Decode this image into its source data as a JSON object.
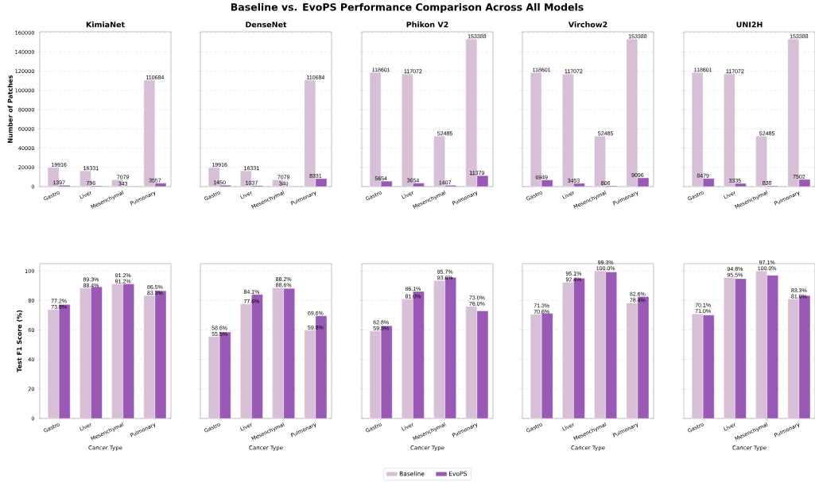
{
  "chart_data": [
    {
      "type": "bar",
      "title": "KimiaNet",
      "ylabel": "Number of Patches",
      "annotations": [
        "Baseline vs. EvoPS Performance Comparison Across All Models"
      ],
      "categories": [
        "Gastro",
        "Liver",
        "Mesenchymal",
        "Pulmonary"
      ],
      "ylim": [
        0,
        161000
      ],
      "yticks": [
        0,
        20000,
        40000,
        60000,
        80000,
        100000,
        120000,
        140000,
        160000
      ],
      "grid": "y",
      "data_labels": true,
      "series": [
        {
          "color": "#d8bfd8",
          "values": [
            19916,
            16331,
            7079,
            110684
          ]
        },
        {
          "color": "#9b59b6",
          "values": [
            1397,
            796,
            343,
            3557
          ]
        }
      ]
    },
    {
      "type": "bar",
      "title": "DenseNet",
      "categories": [
        "Gastro",
        "Liver",
        "Mesenchymal",
        "Pulmonary"
      ],
      "ylim": [
        0,
        161000
      ],
      "yticks": [
        0,
        20000,
        40000,
        60000,
        80000,
        100000,
        120000,
        140000,
        160000
      ],
      "grid": "y",
      "data_labels": true,
      "tick_labels": "x",
      "series": [
        {
          "color": "#d8bfd8",
          "values": [
            19916,
            16331,
            7079,
            110684
          ]
        },
        {
          "color": "#9b59b6",
          "values": [
            1450,
            1037,
            340,
            8331
          ]
        }
      ]
    },
    {
      "type": "bar",
      "title": "Phikon V2",
      "categories": [
        "Gastro",
        "Liver",
        "Mesenchymal",
        "Pulmonary"
      ],
      "ylim": [
        0,
        161000
      ],
      "yticks": [
        0,
        20000,
        40000,
        60000,
        80000,
        100000,
        120000,
        140000,
        160000
      ],
      "grid": "y",
      "data_labels": true,
      "tick_labels": "x",
      "series": [
        {
          "color": "#d8bfd8",
          "values": [
            118601,
            117072,
            52485,
            153388
          ]
        },
        {
          "color": "#9b59b6",
          "values": [
            5654,
            3654,
            1407,
            11379
          ]
        }
      ]
    },
    {
      "type": "bar",
      "title": "Virchow2",
      "categories": [
        "Gastro",
        "Liver",
        "Mesenchymal",
        "Pulmonary"
      ],
      "ylim": [
        0,
        161000
      ],
      "yticks": [
        0,
        20000,
        40000,
        60000,
        80000,
        100000,
        120000,
        140000,
        160000
      ],
      "grid": "y",
      "data_labels": true,
      "tick_labels": "x",
      "series": [
        {
          "color": "#d8bfd8",
          "values": [
            118601,
            117072,
            52485,
            153388
          ]
        },
        {
          "color": "#9b59b6",
          "values": [
            6949,
            3453,
            806,
            9096
          ]
        }
      ]
    },
    {
      "type": "bar",
      "title": "UNI2H",
      "categories": [
        "Gastro",
        "Liver",
        "Mesenchymal",
        "Pulmonary"
      ],
      "ylim": [
        0,
        161000
      ],
      "yticks": [
        0,
        20000,
        40000,
        60000,
        80000,
        100000,
        120000,
        140000,
        160000
      ],
      "grid": "y",
      "data_labels": true,
      "tick_labels": "x",
      "series": [
        {
          "color": "#d8bfd8",
          "values": [
            118601,
            117072,
            52485,
            153388
          ]
        },
        {
          "color": "#9b59b6",
          "values": [
            8479,
            3335,
            838,
            7502
          ]
        }
      ]
    },
    {
      "type": "bar",
      "xlabel": "Cancer Type",
      "ylabel": "Test F1 Score (%)",
      "categories": [
        "Gastro",
        "Liver",
        "Mesenchymal",
        "Pulmonary"
      ],
      "ylim": [
        0,
        105
      ],
      "yticks": [
        0,
        20,
        40,
        60,
        80,
        100
      ],
      "grid": "y",
      "series": [
        {
          "color": "#d8bfd8",
          "values": [
            73.8,
            88.4,
            91.2,
            83.3
          ],
          "value_labels": [
            "73.8%",
            "88.4%",
            "91.2%",
            "83.3%"
          ]
        },
        {
          "color": "#9b59b6",
          "values": [
            77.2,
            89.3,
            91.2,
            86.5
          ],
          "value_labels": [
            "77.2%",
            "89.3%",
            "91.2%",
            "86.5%"
          ]
        }
      ]
    },
    {
      "type": "bar",
      "xlabel": "Cancer Type",
      "categories": [
        "Gastro",
        "Liver",
        "Mesenchymal",
        "Pulmonary"
      ],
      "ylim": [
        0,
        105
      ],
      "yticks": [
        0,
        20,
        40,
        60,
        80,
        100
      ],
      "grid": "y",
      "tick_labels": "x",
      "series": [
        {
          "color": "#d8bfd8",
          "values": [
            55.5,
            77.6,
            88.6,
            59.8
          ],
          "value_labels": [
            "55.5%",
            "77.6%",
            "88.6%",
            "59.8%"
          ]
        },
        {
          "color": "#9b59b6",
          "values": [
            58.6,
            84.1,
            88.2,
            69.6
          ],
          "value_labels": [
            "58.6%",
            "84.1%",
            "88.2%",
            "69.6%"
          ]
        }
      ]
    },
    {
      "type": "bar",
      "xlabel": "Cancer Type",
      "categories": [
        "Gastro",
        "Liver",
        "Mesenchymal",
        "Pulmonary"
      ],
      "ylim": [
        0,
        105
      ],
      "yticks": [
        0,
        20,
        40,
        60,
        80,
        100
      ],
      "grid": "y",
      "tick_labels": "x",
      "legend": "bottom",
      "series": [
        {
          "name": "Baseline",
          "color": "#d8bfd8",
          "values": [
            59.3,
            81.0,
            93.6,
            76.0
          ],
          "value_labels": [
            "59.3%",
            "81.0%",
            "93.6%",
            "76.0%"
          ]
        },
        {
          "name": "EvoPS",
          "color": "#9b59b6",
          "values": [
            62.8,
            86.1,
            95.7,
            73.0
          ],
          "value_labels": [
            "62.8%",
            "86.1%",
            "95.7%",
            "73.0%"
          ]
        }
      ]
    },
    {
      "type": "bar",
      "xlabel": "Cancer Type",
      "categories": [
        "Gastro",
        "Liver",
        "Mesenchymal",
        "Pulmonary"
      ],
      "ylim": [
        0,
        105
      ],
      "yticks": [
        0,
        20,
        40,
        60,
        80,
        100
      ],
      "grid": "y",
      "tick_labels": "x",
      "series": [
        {
          "color": "#d8bfd8",
          "values": [
            70.6,
            92.4,
            100.0,
            78.4
          ],
          "value_labels": [
            "70.6%",
            "92.4%",
            "100.0%",
            "78.4%"
          ]
        },
        {
          "color": "#9b59b6",
          "values": [
            71.3,
            95.1,
            99.3,
            82.6
          ],
          "value_labels": [
            "71.3%",
            "95.1%",
            "99.3%",
            "82.6%"
          ]
        }
      ]
    },
    {
      "type": "bar",
      "xlabel": "Cancer Type",
      "categories": [
        "Gastro",
        "Liver",
        "Mesenchymal",
        "Pulmonary"
      ],
      "ylim": [
        0,
        105
      ],
      "yticks": [
        0,
        20,
        40,
        60,
        80,
        100
      ],
      "grid": "y",
      "tick_labels": "x",
      "series": [
        {
          "color": "#d8bfd8",
          "values": [
            71.0,
            95.5,
            100.0,
            81.0
          ],
          "value_labels": [
            "71.0%",
            "95.5%",
            "100.0%",
            "81.0%"
          ]
        },
        {
          "color": "#9b59b6",
          "values": [
            70.1,
            94.8,
            97.1,
            83.3
          ],
          "value_labels": [
            "70.1%",
            "94.8%",
            "97.1%",
            "83.3%"
          ]
        }
      ]
    }
  ]
}
